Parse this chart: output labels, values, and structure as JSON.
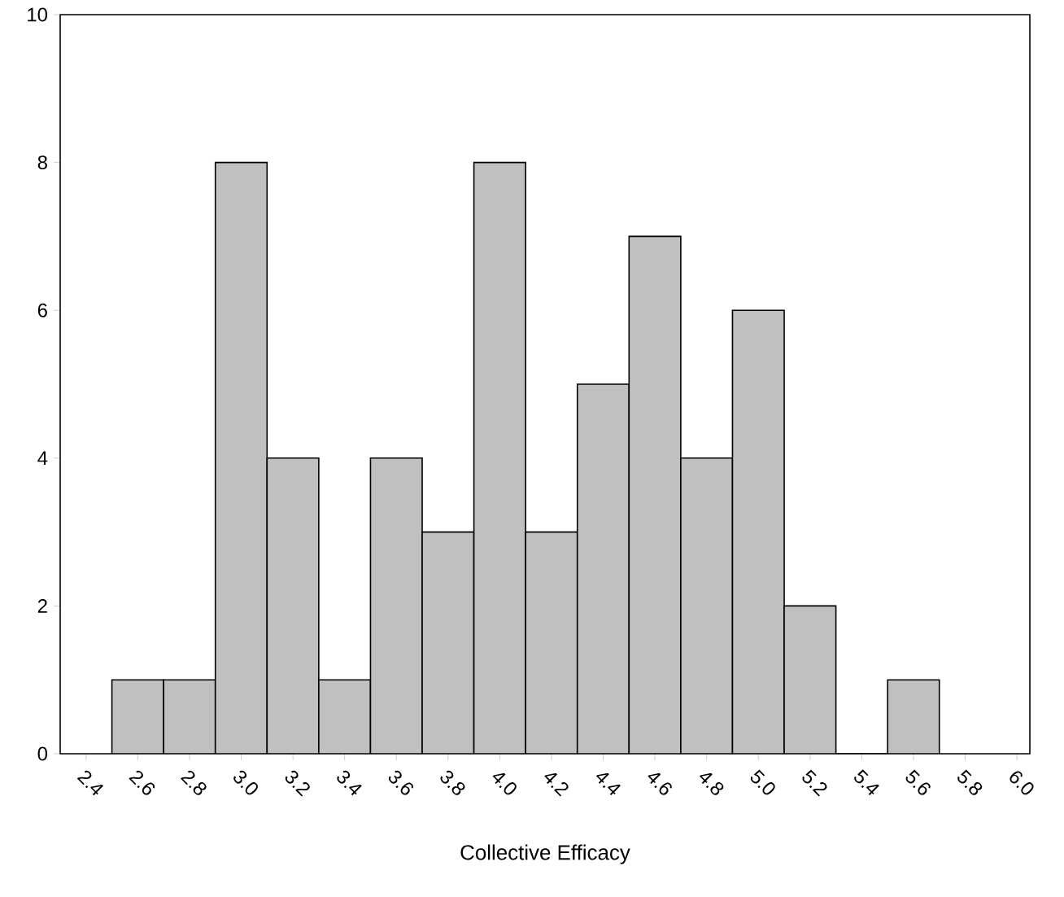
{
  "chart_data": {
    "type": "histogram",
    "xlabel": "Collective Efficacy",
    "bins": [
      2.5,
      2.7,
      2.9,
      3.1,
      3.3,
      3.5,
      3.7,
      3.9,
      4.1,
      4.3,
      4.5,
      4.7,
      4.9,
      5.1,
      5.3,
      5.5,
      5.7
    ],
    "values": [
      1,
      1,
      8,
      4,
      1,
      4,
      3,
      8,
      3,
      5,
      7,
      4,
      6,
      2,
      0,
      1
    ],
    "color": "#c0c0c0",
    "xlim": [
      2.3,
      6.05
    ],
    "ylim": [
      0,
      10
    ],
    "xticks": [
      {
        "value": 2.4,
        "label": "2.4"
      },
      {
        "value": 2.6,
        "label": "2.6"
      },
      {
        "value": 2.8,
        "label": "2.8"
      },
      {
        "value": 3.0,
        "label": "3.0"
      },
      {
        "value": 3.2,
        "label": "3.2"
      },
      {
        "value": 3.4,
        "label": "3.4"
      },
      {
        "value": 3.6,
        "label": "3.6"
      },
      {
        "value": 3.8,
        "label": "3.8"
      },
      {
        "value": 4.0,
        "label": "4.0"
      },
      {
        "value": 4.2,
        "label": "4.2"
      },
      {
        "value": 4.4,
        "label": "4.4"
      },
      {
        "value": 4.6,
        "label": "4.6"
      },
      {
        "value": 4.8,
        "label": "4.8"
      },
      {
        "value": 5.0,
        "label": "5.0"
      },
      {
        "value": 5.2,
        "label": "5.2"
      },
      {
        "value": 5.4,
        "label": "5.4"
      },
      {
        "value": 5.6,
        "label": "5.6"
      },
      {
        "value": 5.8,
        "label": "5.8"
      },
      {
        "value": 6.0,
        "label": "6.0"
      }
    ],
    "yticks": [
      0,
      2,
      4,
      6,
      8,
      10
    ],
    "grid": false
  }
}
